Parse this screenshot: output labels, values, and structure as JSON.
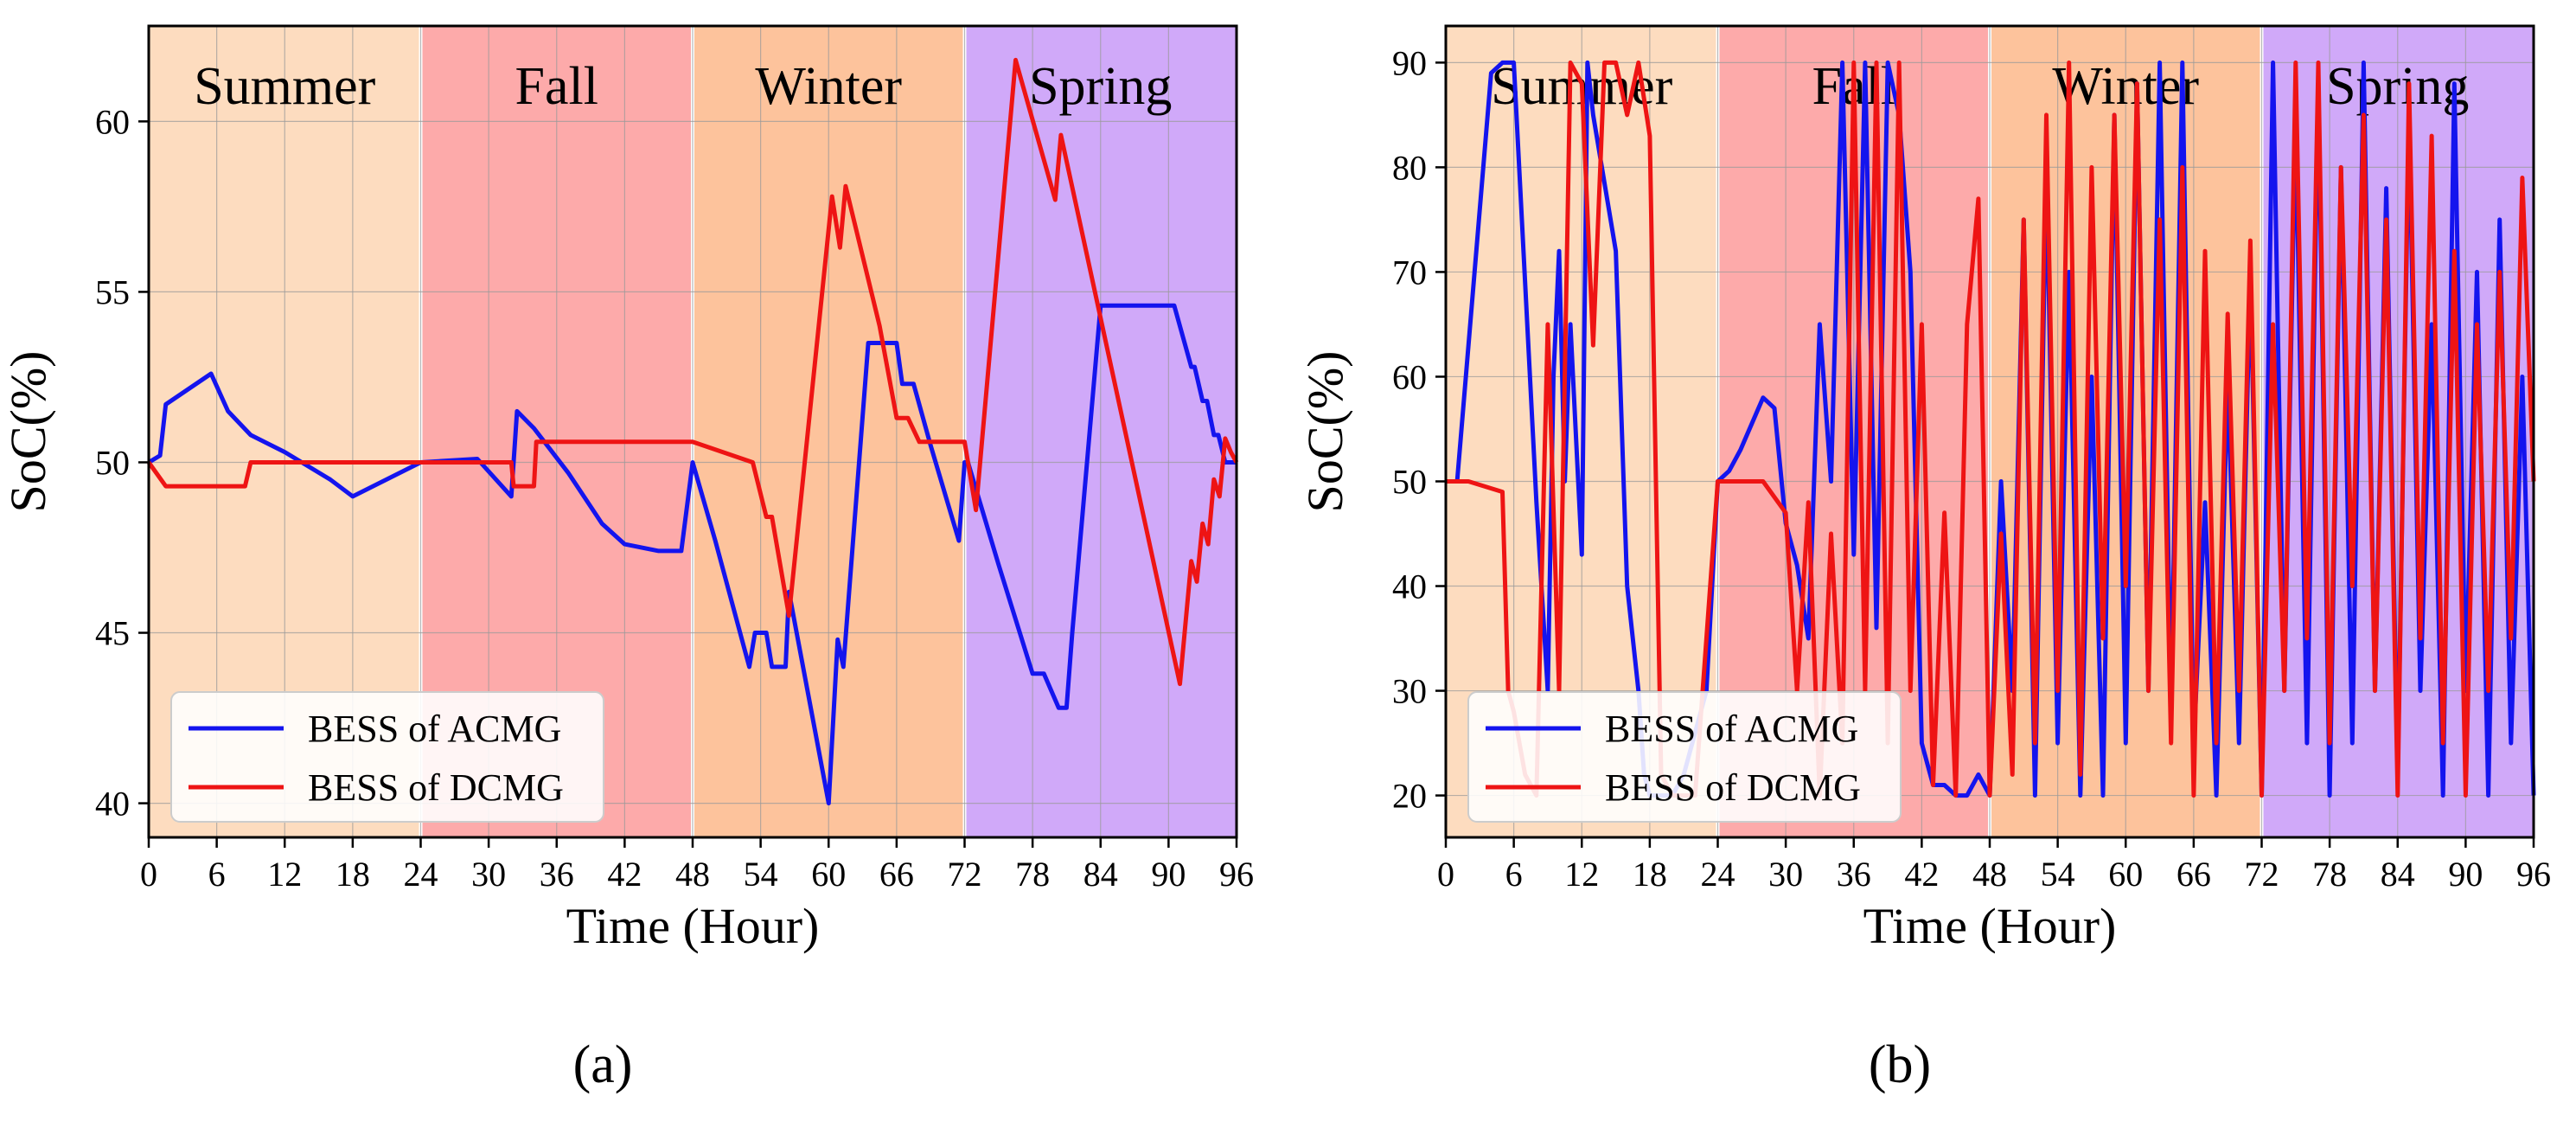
{
  "chart_data": [
    {
      "type": "line",
      "panel_label": "(a)",
      "xlabel": "Time (Hour)",
      "ylabel": "SoC(%)",
      "xlim": [
        0,
        96
      ],
      "ylim": [
        39,
        62.8
      ],
      "xticks": [
        0,
        6,
        12,
        18,
        24,
        30,
        36,
        42,
        48,
        54,
        60,
        66,
        72,
        78,
        84,
        90,
        96
      ],
      "yticks": [
        40,
        45,
        50,
        55,
        60
      ],
      "grid": true,
      "legend_position": "lower-left",
      "seasons": [
        {
          "name": "Summer",
          "start": 0,
          "end": 24,
          "color": "#fddcbf"
        },
        {
          "name": "Fall",
          "start": 24,
          "end": 48,
          "color": "#fdaaaa"
        },
        {
          "name": "Winter",
          "start": 48,
          "end": 72,
          "color": "#fdc39c"
        },
        {
          "name": "Spring",
          "start": 72,
          "end": 96,
          "color": "#d0a9f9"
        }
      ],
      "series": [
        {
          "name": "BESS of ACMG",
          "color": "#1414ee",
          "x": [
            0,
            1,
            1.5,
            5.5,
            7,
            9,
            12,
            16,
            18,
            24,
            29,
            32,
            32.5,
            34,
            37,
            40,
            42,
            45,
            47,
            48,
            50,
            53,
            53.5,
            54.5,
            55,
            56.2,
            56.5,
            60,
            60.8,
            61.3,
            63.5,
            66,
            66.5,
            67.5,
            69,
            71.5,
            72,
            72.3,
            75,
            78,
            79,
            80.3,
            81,
            81.5,
            84,
            84.5,
            85,
            90,
            90.5,
            92,
            92.3,
            93,
            93.4,
            94,
            94.4,
            95,
            96
          ],
          "y": [
            50,
            50.2,
            51.7,
            52.6,
            51.5,
            50.8,
            50.3,
            49.5,
            49.0,
            50.0,
            50.1,
            49.0,
            51.5,
            51.0,
            49.7,
            48.2,
            47.6,
            47.4,
            47.4,
            50.0,
            47.7,
            44.0,
            45.0,
            45.0,
            44.0,
            44.0,
            46.2,
            40.0,
            44.8,
            44.0,
            53.5,
            53.5,
            52.3,
            52.3,
            50.5,
            47.7,
            50.0,
            50.0,
            47.0,
            43.8,
            43.8,
            42.8,
            42.8,
            45.0,
            54.6,
            54.6,
            54.6,
            54.6,
            54.6,
            52.8,
            52.8,
            51.8,
            51.8,
            50.8,
            50.8,
            50.0,
            50.0
          ]
        },
        {
          "name": "BESS of DCMG",
          "color": "#ee1414",
          "x": [
            0,
            1.5,
            8.5,
            9,
            24,
            32,
            32.2,
            34,
            34.2,
            48,
            53.3,
            54.5,
            55,
            56.5,
            60.3,
            61,
            61.5,
            64.5,
            66,
            67,
            68,
            72,
            73,
            76.5,
            80,
            80.5,
            91,
            92,
            92.5,
            93,
            93.5,
            94,
            94.5,
            95,
            95.5,
            96
          ],
          "y": [
            50,
            49.3,
            49.3,
            50.0,
            50.0,
            50.0,
            49.3,
            49.3,
            50.6,
            50.6,
            50.0,
            48.4,
            48.4,
            45.5,
            57.8,
            56.3,
            58.1,
            54.0,
            51.3,
            51.3,
            50.6,
            50.6,
            48.6,
            61.8,
            57.7,
            59.6,
            43.5,
            47.1,
            46.5,
            48.2,
            47.6,
            49.5,
            49.0,
            50.7,
            50.3,
            50.0
          ]
        }
      ]
    },
    {
      "type": "line",
      "panel_label": "(b)",
      "xlabel": "Time (Hour)",
      "ylabel": "SoC(%)",
      "xlim": [
        0,
        96
      ],
      "ylim": [
        16,
        93.5
      ],
      "xticks": [
        0,
        6,
        12,
        18,
        24,
        30,
        36,
        42,
        48,
        54,
        60,
        66,
        72,
        78,
        84,
        90,
        96
      ],
      "yticks": [
        20,
        30,
        40,
        50,
        60,
        70,
        80,
        90
      ],
      "grid": true,
      "legend_position": "lower-left",
      "seasons": [
        {
          "name": "Summer",
          "start": 0,
          "end": 24,
          "color": "#fddcbf"
        },
        {
          "name": "Fall",
          "start": 24,
          "end": 48,
          "color": "#fdaaaa"
        },
        {
          "name": "Winter",
          "start": 48,
          "end": 72,
          "color": "#fdc39c"
        },
        {
          "name": "Spring",
          "start": 72,
          "end": 96,
          "color": "#d0a9f9"
        }
      ],
      "series": [
        {
          "name": "BESS of ACMG",
          "color": "#1414ee",
          "x": [
            0,
            1,
            4,
            5,
            6,
            8,
            9,
            9.5,
            10,
            10.5,
            11,
            12,
            12.5,
            13,
            15,
            16,
            17,
            17.5,
            18,
            20,
            21,
            23,
            24,
            25,
            26,
            28,
            29,
            30,
            31,
            32,
            33,
            34,
            35,
            36,
            37,
            38,
            39,
            40,
            41,
            42,
            43,
            44,
            45,
            46,
            47,
            48,
            49,
            50,
            51,
            52,
            53,
            54,
            55,
            56,
            57,
            58,
            59,
            60,
            61,
            62,
            63,
            64,
            65,
            66,
            67,
            68,
            69,
            70,
            71,
            72,
            73,
            74,
            75,
            76,
            77,
            78,
            79,
            80,
            81,
            82,
            83,
            84,
            85,
            86,
            87,
            88,
            89,
            90,
            91,
            92,
            93,
            94,
            95,
            96
          ],
          "y": [
            50,
            50,
            89,
            90,
            90,
            48,
            30,
            60,
            72,
            50,
            65,
            43,
            90,
            85,
            72,
            40,
            30,
            22,
            20,
            20,
            22,
            30,
            50,
            51,
            53,
            58,
            57,
            46,
            42,
            35,
            65,
            50,
            90,
            43,
            90,
            36,
            90,
            85,
            70,
            25,
            21,
            21,
            20,
            20,
            22,
            20,
            50,
            30,
            75,
            20,
            80,
            25,
            70,
            20,
            60,
            20,
            85,
            25,
            88,
            30,
            90,
            28,
            90,
            25,
            48,
            20,
            60,
            25,
            70,
            20,
            90,
            30,
            85,
            25,
            88,
            20,
            80,
            25,
            90,
            30,
            78,
            22,
            85,
            30,
            65,
            20,
            88,
            30,
            70,
            20,
            75,
            25,
            60,
            20
          ]
        },
        {
          "name": "BESS of DCMG",
          "color": "#ee1414",
          "x": [
            0,
            2,
            5,
            5.5,
            6,
            7,
            8,
            9,
            10,
            11,
            12,
            13,
            14,
            15,
            16,
            17,
            18,
            19,
            20,
            22,
            24,
            26,
            28,
            30,
            31,
            32,
            33,
            34,
            35,
            36,
            37,
            38,
            39,
            40,
            41,
            42,
            43,
            44,
            45,
            46,
            47,
            48,
            49,
            50,
            51,
            52,
            53,
            54,
            55,
            56,
            57,
            58,
            59,
            60,
            61,
            62,
            63,
            64,
            65,
            66,
            67,
            68,
            69,
            70,
            71,
            72,
            73,
            74,
            75,
            76,
            77,
            78,
            79,
            80,
            81,
            82,
            83,
            84,
            85,
            86,
            87,
            88,
            89,
            90,
            91,
            92,
            93,
            94,
            95,
            96
          ],
          "y": [
            50,
            50,
            49,
            30,
            28,
            22,
            20,
            65,
            30,
            90,
            88,
            63,
            90,
            90,
            85,
            90,
            83,
            22,
            20,
            20,
            50,
            50,
            50,
            47,
            30,
            48,
            20,
            45,
            25,
            90,
            30,
            90,
            25,
            90,
            30,
            65,
            21,
            47,
            20,
            65,
            77,
            20,
            45,
            22,
            75,
            25,
            85,
            30,
            90,
            22,
            80,
            35,
            85,
            40,
            88,
            30,
            75,
            25,
            80,
            20,
            72,
            25,
            66,
            30,
            73,
            20,
            65,
            30,
            90,
            35,
            90,
            25,
            80,
            40,
            85,
            30,
            75,
            20,
            88,
            35,
            83,
            25,
            72,
            20,
            65,
            30,
            70,
            35,
            79,
            50
          ]
        }
      ]
    }
  ]
}
